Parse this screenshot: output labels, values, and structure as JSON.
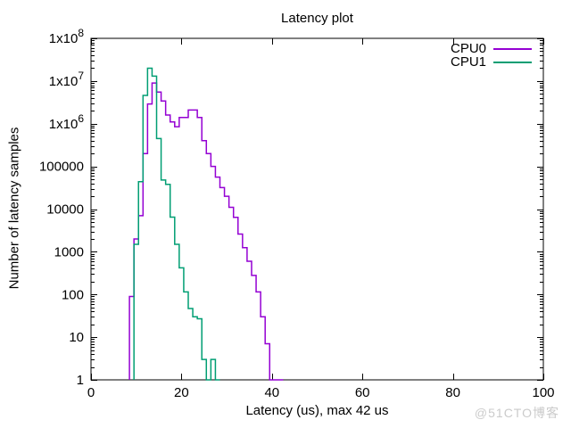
{
  "page": {
    "background": "#ffffff"
  },
  "watermark": {
    "text": "@51CTO博客",
    "color": "#cbcbcb"
  },
  "chart_data": {
    "type": "line",
    "style": "histogram-steps",
    "title": "Latency plot",
    "xlabel": "Latency (us), max 42 us",
    "ylabel": "Number of latency samples",
    "x_axis": {
      "min": 0,
      "max": 100,
      "ticks": [
        0,
        20,
        40,
        60,
        80,
        100
      ]
    },
    "y_axis": {
      "scale": "log10",
      "min": 1,
      "max": 100000000,
      "ticks": [
        {
          "label": "1x10^8",
          "value": 100000000
        },
        {
          "label": "1x10^7",
          "value": 10000000
        },
        {
          "label": "1x10^6",
          "value": 1000000
        },
        {
          "label": "100000",
          "value": 100000
        },
        {
          "label": "10000",
          "value": 10000
        },
        {
          "label": "1000",
          "value": 1000
        },
        {
          "label": "100",
          "value": 100
        },
        {
          "label": "10",
          "value": 10
        },
        {
          "label": "1",
          "value": 1
        }
      ],
      "minor_ticks_per_decade": [
        2,
        3,
        4,
        5,
        6,
        7,
        8,
        9
      ]
    },
    "grid": false,
    "legend_position": "top-right-inside",
    "bin_width_us": 1,
    "series": [
      {
        "name": "CPU0",
        "color": "#9400d3",
        "x": [
          9,
          10,
          11,
          12,
          13,
          14,
          15,
          16,
          17,
          18,
          19,
          20,
          21,
          22,
          23,
          24,
          25,
          26,
          27,
          28,
          29,
          30,
          31,
          32,
          33,
          34,
          35,
          36,
          37,
          38,
          39,
          40,
          41,
          42
        ],
        "counts": [
          90,
          2000,
          7000,
          200000,
          2900000,
          9000000,
          5500000,
          3400000,
          1600000,
          1100000,
          850000,
          1400000,
          1400000,
          2100000,
          2100000,
          1400000,
          400000,
          200000,
          100000,
          56000,
          32000,
          20000,
          11000,
          6400,
          2600,
          1250,
          600,
          280,
          115,
          30,
          7,
          1,
          1,
          1
        ]
      },
      {
        "name": "CPU1",
        "color": "#009e73",
        "x": [
          10,
          11,
          12,
          13,
          14,
          15,
          16,
          17,
          18,
          19,
          20,
          21,
          22,
          23,
          24,
          25,
          26,
          27,
          28
        ],
        "counts": [
          1500,
          44000,
          4600000,
          20000000,
          13000000,
          450000,
          48000,
          38000,
          6500,
          1500,
          420,
          115,
          47,
          30,
          27,
          3,
          1,
          3,
          1
        ]
      }
    ]
  }
}
